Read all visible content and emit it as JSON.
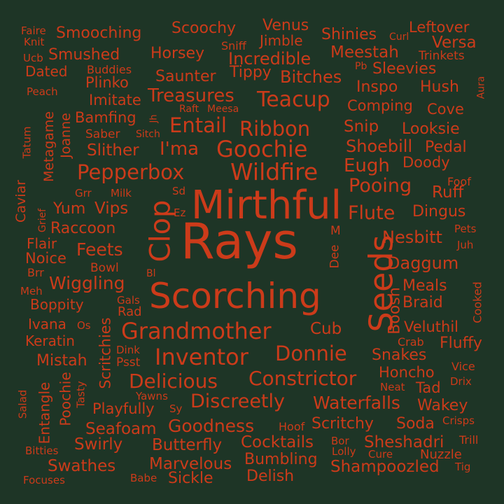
{
  "colors": {
    "background": "#1e3526",
    "text": "#cc3b1a"
  },
  "words": [
    "Rays",
    "Mirthful",
    "Scorching",
    "Seeds",
    "Clop",
    "Grandmother",
    "Wildfire",
    "Goochie",
    "Pepperbox",
    "Ribbon",
    "Inventor",
    "Teacup",
    "Entail",
    "Donnie",
    "Constrictor",
    "Delicious",
    "I'ma",
    "Treasures",
    "Smooching",
    "Scoochy",
    "Venus",
    "Shinies",
    "Leftover",
    "Incredible",
    "Meestah",
    "Versa",
    "Horsey",
    "Smushed",
    "Bitches",
    "Tippy",
    "Sleevies",
    "Saunter",
    "Plinko",
    "Inspo",
    "Hush",
    "Imitate",
    "Comping",
    "Cove",
    "Bamfing",
    "Snip",
    "Looksie",
    "Shoebill",
    "Pedal",
    "Slither",
    "Eugh",
    "Doody",
    "Pooing",
    "Ruff",
    "Flute",
    "Dingus",
    "Nesbitt",
    "Feets",
    "Daggum",
    "Wiggling",
    "Meals",
    "Braid",
    "Boosh",
    "Cub",
    "Veluthil",
    "Fluffy",
    "Snakes",
    "Honcho",
    "Tad",
    "Discreetly",
    "Waterfalls",
    "Wakey",
    "Goodness",
    "Scritchy",
    "Soda",
    "Seafoam",
    "Swirly",
    "Butterfly",
    "Cocktails",
    "Sheshadri",
    "Bumbling",
    "Marvelous",
    "Shampoozled",
    "Swathes",
    "Sickle",
    "Delish",
    "Nuzzle",
    "Playfully",
    "Vips",
    "Yum",
    "Raccoon",
    "Noice",
    "Flair",
    "Boppity",
    "Ivana",
    "Keratin",
    "Mistah",
    "Entangle",
    "Poochie",
    "Scritchies",
    "Metagame",
    "Joanne",
    "Caviar",
    "Dated",
    "Saber",
    "Jimble",
    "Buddies",
    "Trinkets",
    "Raft",
    "Meesa",
    "Sitch",
    "Milk",
    "Grr",
    "Sd",
    "Ez",
    "Bowl",
    "Bl",
    "Brr",
    "Meh",
    "Gals",
    "Rad",
    "Os",
    "Dink",
    "Psst",
    "Yawns",
    "Sy",
    "Tasty",
    "Salad",
    "Bitties",
    "Focuses",
    "Babe",
    "Lolly",
    "Cure",
    "Bor",
    "Hoof",
    "Tig",
    "Trill",
    "Crisps",
    "Drix",
    "Vice",
    "Neat",
    "Crab",
    "Cooked",
    "Juh",
    "Pets",
    "Foof",
    "Aura",
    "Pb",
    "Curl",
    "Sniff",
    "Faire",
    "Knit",
    "Ucb",
    "Peach",
    "Tatum",
    "Grief",
    "Jh",
    "M",
    "Dee"
  ]
}
